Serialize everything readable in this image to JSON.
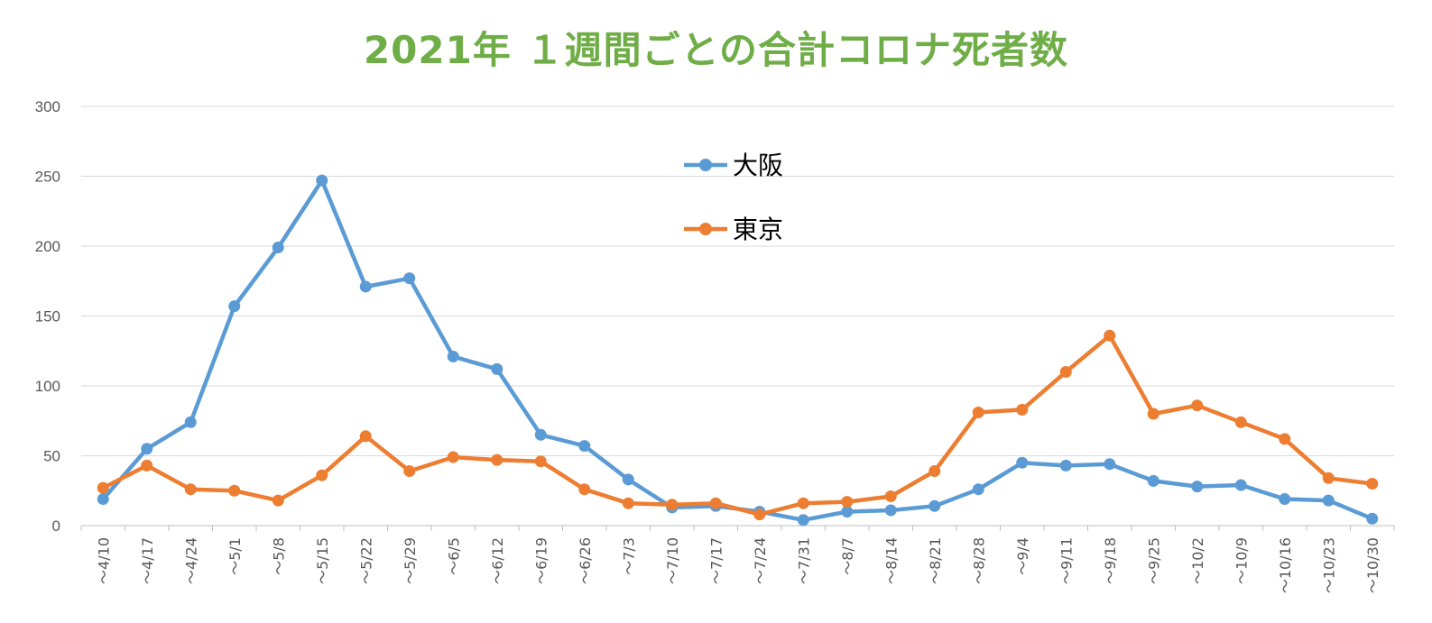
{
  "colors": {
    "title": "#6FAD47",
    "osaka": "#5B9BD5",
    "tokyo": "#ED7D31",
    "grid": "#D9D9D9",
    "axis_text": "#595959"
  },
  "chart_data": {
    "type": "line",
    "title": "2021年 １週間ごとの合計コロナ死者数",
    "xlabel": "",
    "ylabel": "",
    "ylim": [
      0,
      300
    ],
    "yticks": [
      0,
      50,
      100,
      150,
      200,
      250,
      300
    ],
    "grid": true,
    "legend_position": "top-center",
    "categories": [
      "～4/10",
      "～4/17",
      "～4/24",
      "～5/1",
      "～5/8",
      "～5/15",
      "～5/22",
      "～5/29",
      "～6/5",
      "～6/12",
      "～6/19",
      "～6/26",
      "～7/3",
      "～7/10",
      "～7/17",
      "～7/24",
      "～7/31",
      "～8/7",
      "～8/14",
      "～8/21",
      "～8/28",
      "～9/4",
      "～9/11",
      "～9/18",
      "～9/25",
      "～10/2",
      "～10/9",
      "～10/16",
      "～10/23",
      "～10/30"
    ],
    "series": [
      {
        "name": "大阪",
        "color": "#5B9BD5",
        "values": [
          19,
          55,
          74,
          157,
          199,
          247,
          171,
          177,
          121,
          112,
          65,
          57,
          33,
          13,
          14,
          10,
          4,
          10,
          11,
          14,
          26,
          45,
          43,
          44,
          32,
          28,
          29,
          19,
          18,
          5
        ]
      },
      {
        "name": "東京",
        "color": "#ED7D31",
        "values": [
          27,
          43,
          26,
          25,
          18,
          36,
          64,
          39,
          49,
          47,
          46,
          26,
          16,
          15,
          16,
          8,
          16,
          17,
          21,
          39,
          81,
          83,
          110,
          136,
          80,
          86,
          74,
          62,
          34,
          30
        ]
      }
    ]
  }
}
